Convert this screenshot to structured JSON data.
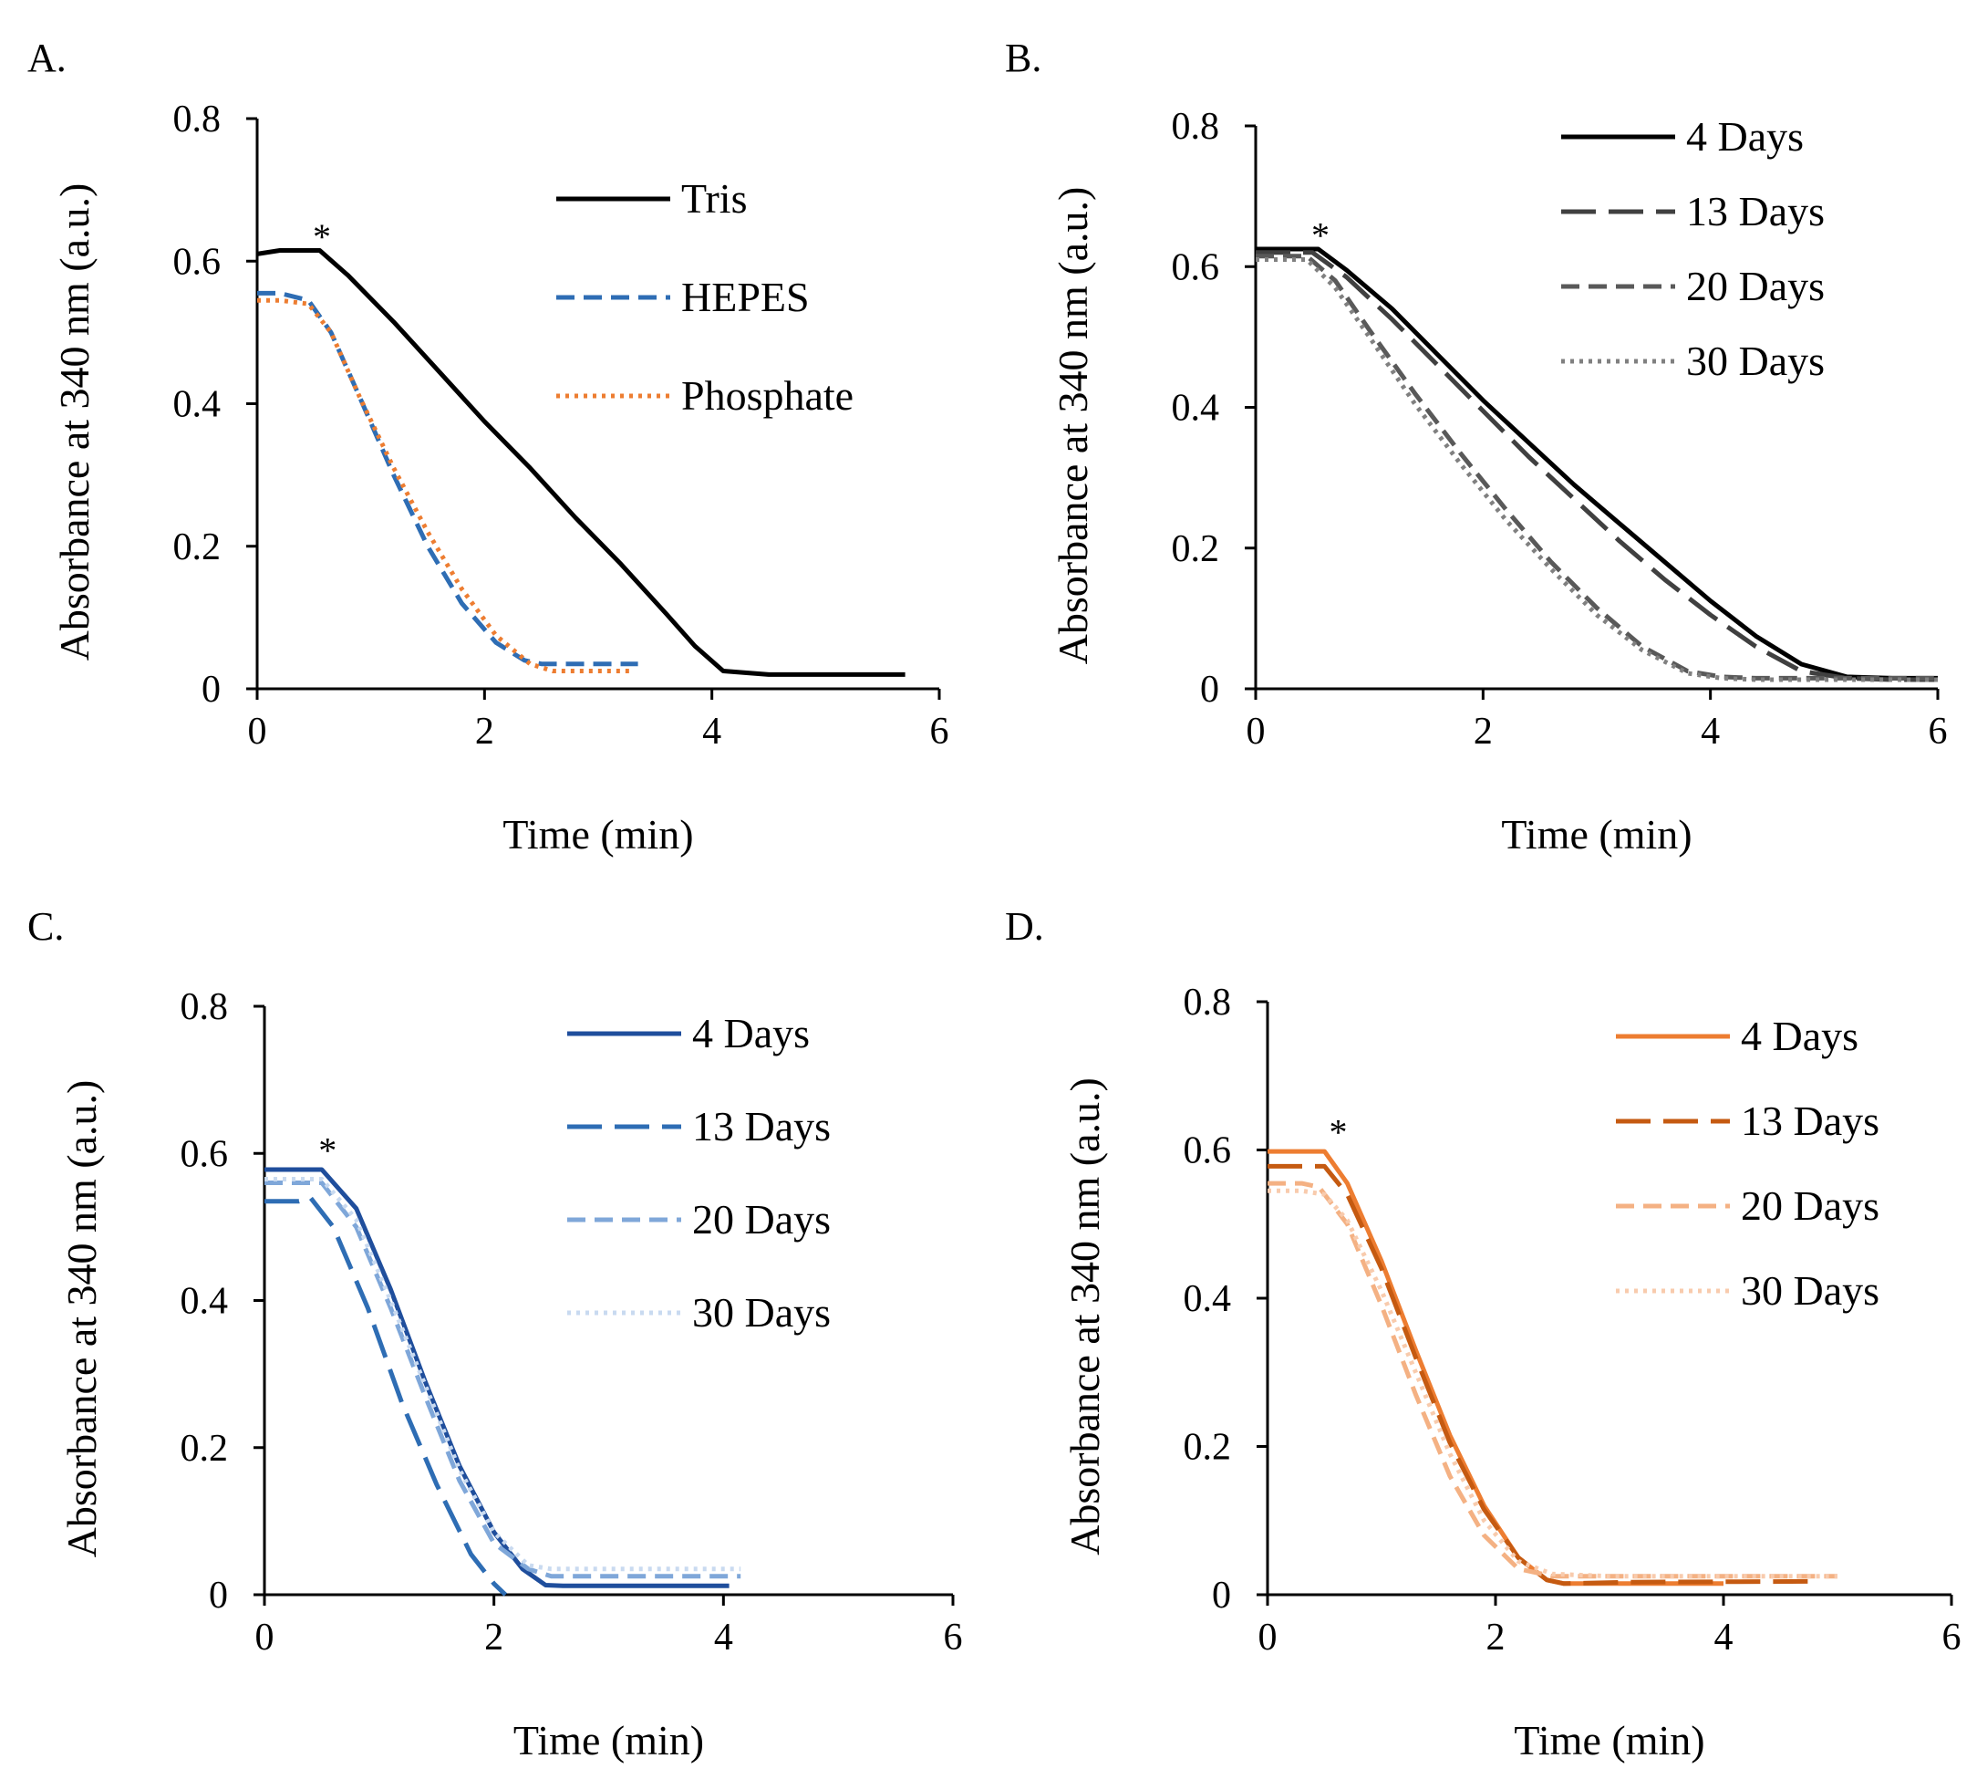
{
  "figure": {
    "colors": {
      "axis": "#000000"
    }
  },
  "chart_data": [
    {
      "id": "A",
      "panel_label": "A.",
      "type": "line",
      "xlabel": "Time (min)",
      "ylabel": "Absorbance at 340 nm (a.u.)",
      "xlim": [
        0,
        6
      ],
      "ylim": [
        0,
        0.8
      ],
      "xticks": [
        "0",
        "2",
        "4",
        "6"
      ],
      "yticks": [
        "0",
        "0.2",
        "0.4",
        "0.6",
        "0.8"
      ],
      "annotation": {
        "text": "*",
        "x": 0.57,
        "y": 0.63
      },
      "legend_placement": "top-right",
      "series": [
        {
          "name": "Tris",
          "color": "#000000",
          "dash": "solid",
          "x": [
            0,
            0.2,
            0.55,
            0.8,
            1.2,
            1.6,
            2.0,
            2.4,
            2.8,
            3.2,
            3.6,
            3.85,
            4.1,
            4.5,
            5.0,
            5.7
          ],
          "y": [
            0.61,
            0.615,
            0.615,
            0.58,
            0.515,
            0.445,
            0.375,
            0.31,
            0.24,
            0.175,
            0.105,
            0.06,
            0.025,
            0.02,
            0.02,
            0.02
          ]
        },
        {
          "name": "HEPES",
          "color": "#2E6DB4",
          "dash": "dashed",
          "x": [
            0,
            0.2,
            0.45,
            0.65,
            0.9,
            1.2,
            1.5,
            1.8,
            2.1,
            2.35,
            2.5,
            2.8,
            3.35
          ],
          "y": [
            0.555,
            0.555,
            0.545,
            0.5,
            0.41,
            0.3,
            0.2,
            0.12,
            0.065,
            0.04,
            0.035,
            0.035,
            0.035
          ]
        },
        {
          "name": "Phosphate",
          "color": "#ED7D31",
          "dash": "dotted",
          "x": [
            0,
            0.2,
            0.45,
            0.65,
            0.9,
            1.2,
            1.5,
            1.8,
            2.1,
            2.4,
            2.6,
            2.9,
            3.3
          ],
          "y": [
            0.545,
            0.545,
            0.54,
            0.5,
            0.41,
            0.31,
            0.22,
            0.14,
            0.075,
            0.035,
            0.025,
            0.025,
            0.025
          ]
        }
      ]
    },
    {
      "id": "B",
      "panel_label": "B.",
      "type": "line",
      "xlabel": "Time (min)",
      "ylabel": "Absorbance at 340 nm (a.u.)",
      "xlim": [
        0,
        6
      ],
      "ylim": [
        0,
        0.8
      ],
      "xticks": [
        "0",
        "2",
        "4",
        "6"
      ],
      "yticks": [
        "0",
        "0.2",
        "0.4",
        "0.6",
        "0.8"
      ],
      "annotation": {
        "text": "*",
        "x": 0.57,
        "y": 0.64
      },
      "legend_placement": "top-right",
      "series": [
        {
          "name": "4 Days",
          "color": "#000000",
          "dash": "solid",
          "x": [
            0,
            0.55,
            0.8,
            1.2,
            1.6,
            2.0,
            2.4,
            2.8,
            3.2,
            3.6,
            4.0,
            4.4,
            4.8,
            5.2,
            5.6,
            6.0
          ],
          "y": [
            0.625,
            0.625,
            0.595,
            0.54,
            0.475,
            0.41,
            0.35,
            0.29,
            0.235,
            0.18,
            0.125,
            0.075,
            0.035,
            0.017,
            0.015,
            0.015
          ]
        },
        {
          "name": "13 Days",
          "color": "#404040",
          "dash": "longdash",
          "x": [
            0,
            0.5,
            0.8,
            1.2,
            1.6,
            2.0,
            2.4,
            2.8,
            3.2,
            3.6,
            4.0,
            4.4,
            4.8,
            5.2,
            5.6,
            6.0
          ],
          "y": [
            0.62,
            0.62,
            0.585,
            0.525,
            0.46,
            0.395,
            0.33,
            0.27,
            0.21,
            0.155,
            0.105,
            0.06,
            0.025,
            0.015,
            0.013,
            0.013
          ]
        },
        {
          "name": "20 Days",
          "color": "#595959",
          "dash": "dashed",
          "x": [
            0,
            0.45,
            0.7,
            1.0,
            1.4,
            1.8,
            2.2,
            2.6,
            3.0,
            3.4,
            3.8,
            4.1,
            4.4,
            5.0,
            6.0
          ],
          "y": [
            0.615,
            0.615,
            0.58,
            0.51,
            0.42,
            0.335,
            0.255,
            0.18,
            0.115,
            0.06,
            0.025,
            0.017,
            0.015,
            0.015,
            0.015
          ]
        },
        {
          "name": "30 Days",
          "color": "#808080",
          "dash": "dotted",
          "x": [
            0,
            0.45,
            0.7,
            1.0,
            1.4,
            1.8,
            2.2,
            2.6,
            3.0,
            3.4,
            3.8,
            4.1,
            4.4,
            5.0,
            6.0
          ],
          "y": [
            0.61,
            0.61,
            0.57,
            0.5,
            0.405,
            0.32,
            0.24,
            0.17,
            0.105,
            0.055,
            0.022,
            0.015,
            0.013,
            0.013,
            0.013
          ]
        }
      ]
    },
    {
      "id": "C",
      "panel_label": "C.",
      "type": "line",
      "xlabel": "Time (min)",
      "ylabel": "Absorbance at 340 nm (a.u.)",
      "xlim": [
        0,
        6
      ],
      "ylim": [
        0,
        0.8
      ],
      "xticks": [
        "0",
        "2",
        "4",
        "6"
      ],
      "yticks": [
        "0",
        "0.2",
        "0.4",
        "0.6",
        "0.8"
      ],
      "annotation": {
        "text": "*",
        "x": 0.55,
        "y": 0.6
      },
      "legend_placement": "top-right",
      "series": [
        {
          "name": "4 Days",
          "color": "#1F4E9C",
          "dash": "solid",
          "x": [
            0,
            0.5,
            0.8,
            1.1,
            1.4,
            1.7,
            2.0,
            2.25,
            2.45,
            2.6,
            3.0,
            4.05
          ],
          "y": [
            0.578,
            0.578,
            0.525,
            0.415,
            0.29,
            0.175,
            0.085,
            0.035,
            0.013,
            0.012,
            0.012,
            0.012
          ]
        },
        {
          "name": "13 Days",
          "color": "#2E6DB4",
          "dash": "longdash",
          "x": [
            0,
            0.3,
            0.4,
            0.6,
            0.9,
            1.2,
            1.5,
            1.8,
            2.0,
            2.1
          ],
          "y": [
            0.535,
            0.535,
            0.54,
            0.5,
            0.39,
            0.26,
            0.15,
            0.055,
            0.015,
            0.0
          ]
        },
        {
          "name": "20 Days",
          "color": "#7FA7D9",
          "dash": "dashed",
          "x": [
            0,
            0.5,
            0.8,
            1.1,
            1.4,
            1.7,
            2.0,
            2.3,
            2.5,
            3.0,
            4.15
          ],
          "y": [
            0.56,
            0.56,
            0.5,
            0.39,
            0.27,
            0.155,
            0.07,
            0.035,
            0.025,
            0.025,
            0.025
          ]
        },
        {
          "name": "30 Days",
          "color": "#C9DAF0",
          "dash": "dotted",
          "x": [
            0,
            0.5,
            0.8,
            1.1,
            1.4,
            1.7,
            2.0,
            2.3,
            2.5,
            3.0,
            4.15
          ],
          "y": [
            0.565,
            0.565,
            0.51,
            0.4,
            0.285,
            0.17,
            0.085,
            0.04,
            0.035,
            0.035,
            0.035
          ]
        }
      ]
    },
    {
      "id": "D",
      "panel_label": "D.",
      "type": "line",
      "xlabel": "Time (min)",
      "ylabel": "Absorbance at 340 nm (a.u.)",
      "xlim": [
        0,
        6
      ],
      "ylim": [
        0,
        0.8
      ],
      "xticks": [
        "0",
        "2",
        "4",
        "6"
      ],
      "yticks": [
        "0",
        "0.2",
        "0.4",
        "0.6",
        "0.8"
      ],
      "annotation": {
        "text": "*",
        "x": 0.62,
        "y": 0.62
      },
      "legend_placement": "top-right",
      "series": [
        {
          "name": "4 Days",
          "color": "#ED7D31",
          "dash": "solid",
          "x": [
            0,
            0.5,
            0.7,
            1.0,
            1.3,
            1.6,
            1.9,
            2.2,
            2.45,
            2.6,
            3.0,
            4.0
          ],
          "y": [
            0.598,
            0.598,
            0.555,
            0.45,
            0.33,
            0.215,
            0.12,
            0.05,
            0.02,
            0.015,
            0.015,
            0.015
          ]
        },
        {
          "name": "13 Days",
          "color": "#C55A11",
          "dash": "longdash",
          "x": [
            0,
            0.3,
            0.5,
            0.7,
            1.0,
            1.3,
            1.6,
            1.9,
            2.2,
            2.45,
            2.6,
            3.2,
            4.8
          ],
          "y": [
            0.578,
            0.578,
            0.578,
            0.54,
            0.44,
            0.32,
            0.205,
            0.115,
            0.05,
            0.02,
            0.015,
            0.017,
            0.018
          ]
        },
        {
          "name": "20 Days",
          "color": "#F4B183",
          "dash": "dashed",
          "x": [
            0,
            0.3,
            0.45,
            0.7,
            1.0,
            1.3,
            1.6,
            1.9,
            2.2,
            2.5,
            3.0,
            5.0
          ],
          "y": [
            0.555,
            0.555,
            0.55,
            0.5,
            0.39,
            0.27,
            0.16,
            0.08,
            0.035,
            0.025,
            0.025,
            0.025
          ]
        },
        {
          "name": "30 Days",
          "color": "#F8CBAD",
          "dash": "dotted",
          "x": [
            0,
            0.3,
            0.5,
            0.7,
            1.0,
            1.3,
            1.6,
            1.9,
            2.2,
            2.5,
            3.0,
            5.0
          ],
          "y": [
            0.545,
            0.545,
            0.54,
            0.505,
            0.41,
            0.3,
            0.19,
            0.1,
            0.045,
            0.028,
            0.025,
            0.025
          ]
        }
      ]
    }
  ]
}
